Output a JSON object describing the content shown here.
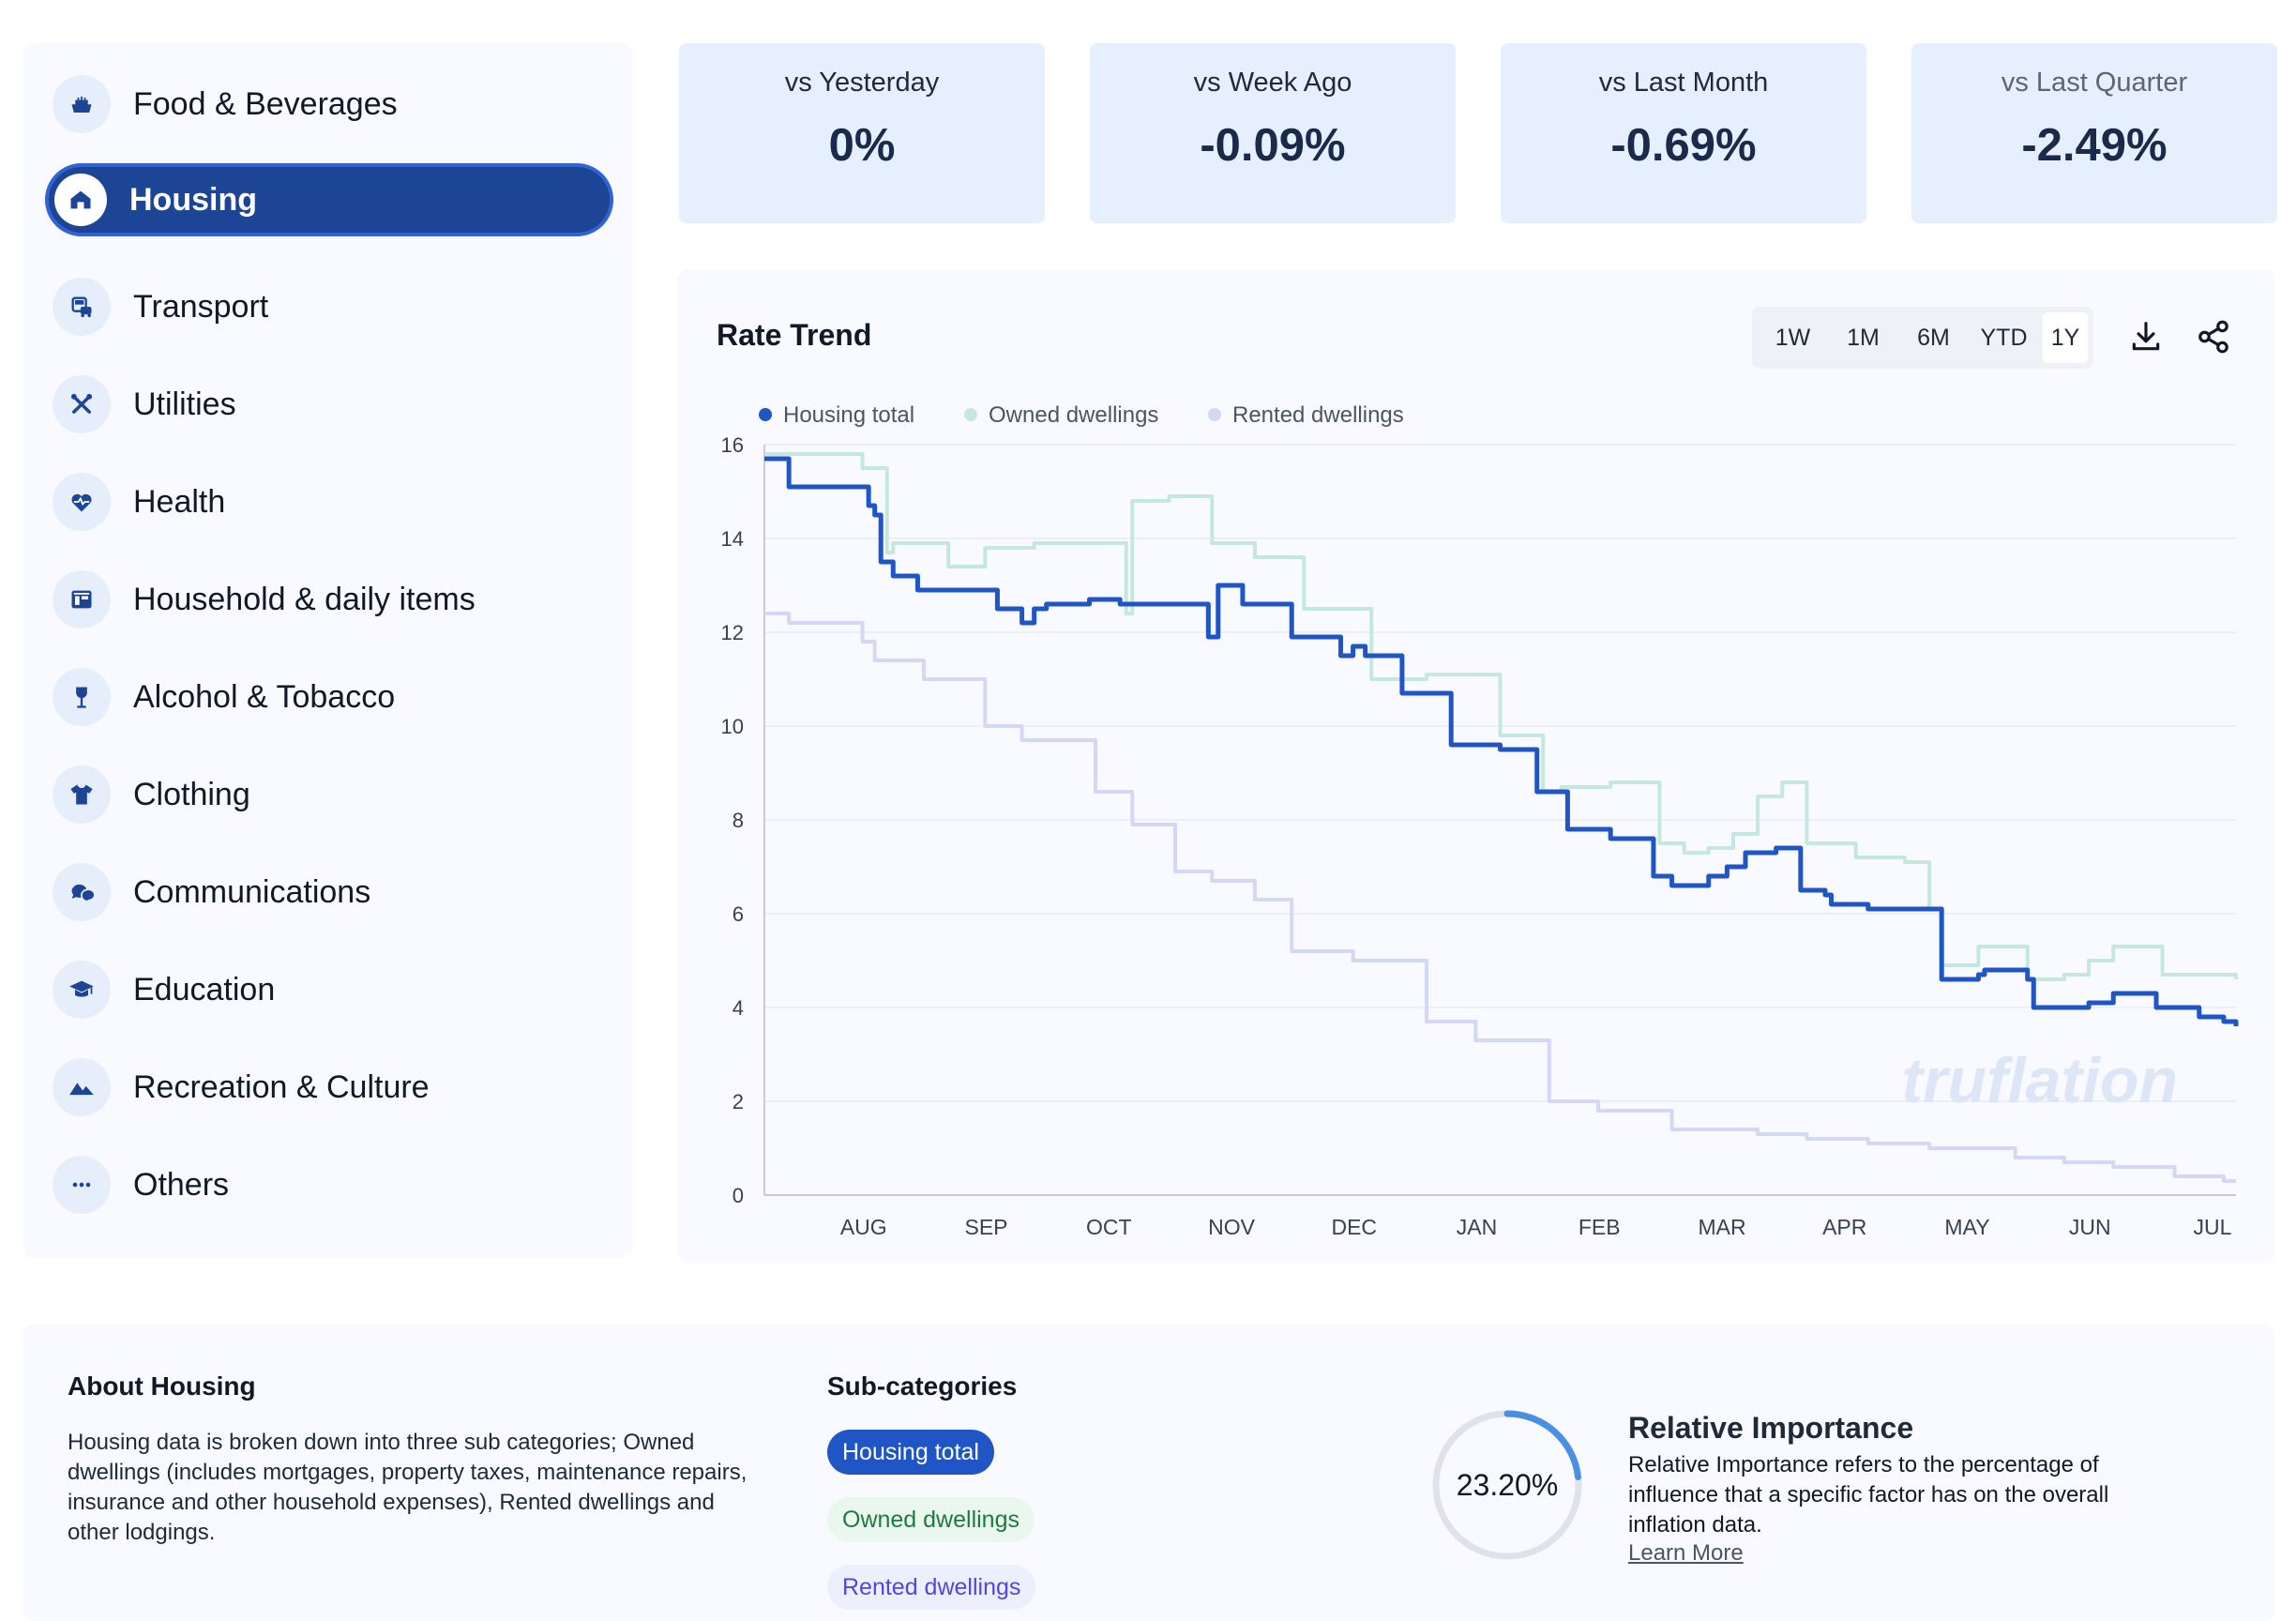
{
  "sidebar": {
    "items": [
      {
        "label": "Food & Beverages",
        "icon": "food-icon"
      },
      {
        "label": "Housing",
        "icon": "home-icon",
        "active": true
      },
      {
        "label": "Transport",
        "icon": "transport-icon"
      },
      {
        "label": "Utilities",
        "icon": "tools-icon"
      },
      {
        "label": "Health",
        "icon": "heart-icon"
      },
      {
        "label": "Household & daily items",
        "icon": "household-icon"
      },
      {
        "label": "Alcohol & Tobacco",
        "icon": "wine-icon"
      },
      {
        "label": "Clothing",
        "icon": "shirt-icon"
      },
      {
        "label": "Communications",
        "icon": "chat-icon"
      },
      {
        "label": "Education",
        "icon": "graduation-cap-icon"
      },
      {
        "label": "Recreation & Culture",
        "icon": "mountain-icon"
      },
      {
        "label": "Others",
        "icon": "dots-icon"
      }
    ]
  },
  "stats": [
    {
      "label": "vs Yesterday",
      "value": "0%"
    },
    {
      "label": "vs Week Ago",
      "value": "-0.09%"
    },
    {
      "label": "vs Last Month",
      "value": "-0.69%"
    },
    {
      "label": "vs Last Quarter",
      "value": "-2.49%"
    }
  ],
  "chart_panel": {
    "title": "Rate Trend",
    "ranges": [
      "1W",
      "1M",
      "6M",
      "YTD",
      "1Y"
    ],
    "selected_range": "1Y",
    "watermark": "truflation"
  },
  "chart_data": {
    "type": "line",
    "title": "Rate Trend",
    "xlabel": "",
    "ylabel": "",
    "x_ticks": [
      "AUG",
      "SEP",
      "OCT",
      "NOV",
      "DEC",
      "JAN",
      "FEB",
      "MAR",
      "APR",
      "MAY",
      "JUN",
      "JUL"
    ],
    "yticks": [
      0,
      2,
      4,
      6,
      8,
      10,
      12,
      14,
      16
    ],
    "ylim": [
      0,
      16
    ],
    "x_domain": [
      0,
      12
    ],
    "grid": true,
    "legend_position": "top-left",
    "series": [
      {
        "name": "Housing total",
        "color": "#1f55c4",
        "x": [
          0,
          0.2,
          0.3,
          0.85,
          0.9,
          0.95,
          1.05,
          1.25,
          1.45,
          1.9,
          2.1,
          2.2,
          2.3,
          2.6,
          2.65,
          2.9,
          3.6,
          3.62,
          3.7,
          3.9,
          4.3,
          4.7,
          4.8,
          4.9,
          5.2,
          5.3,
          5.6,
          6.0,
          6.3,
          6.55,
          6.9,
          7.25,
          7.4,
          7.7,
          7.85,
          8.0,
          8.25,
          8.45,
          8.65,
          8.7,
          9.0,
          9.15,
          9.3,
          9.6,
          9.9,
          9.95,
          10.1,
          10.3,
          10.35,
          10.6,
          10.8,
          11.0,
          11.35,
          11.7,
          11.8,
          11.9,
          12.0
        ],
        "y": [
          15.7,
          15.1,
          15.1,
          14.7,
          14.5,
          13.5,
          13.2,
          12.9,
          12.9,
          12.5,
          12.2,
          12.5,
          12.6,
          12.6,
          12.7,
          12.6,
          12.6,
          11.9,
          13.0,
          12.6,
          11.9,
          11.5,
          11.7,
          11.5,
          10.7,
          10.7,
          9.6,
          9.5,
          8.6,
          7.8,
          7.6,
          6.8,
          6.6,
          6.8,
          7.0,
          7.3,
          7.4,
          6.5,
          6.4,
          6.2,
          6.1,
          6.1,
          6.1,
          4.6,
          4.7,
          4.8,
          4.8,
          4.6,
          4.0,
          4.0,
          4.1,
          4.3,
          4.0,
          3.8,
          3.8,
          3.7,
          3.6
        ]
      },
      {
        "name": "Owned dwellings",
        "color": "#c5e8dc",
        "x": [
          0,
          0.8,
          1.0,
          1.05,
          1.5,
          1.8,
          2.2,
          2.95,
          3.0,
          3.3,
          3.65,
          4.0,
          4.4,
          4.95,
          5.4,
          6.0,
          6.35,
          6.5,
          6.9,
          7.3,
          7.5,
          7.7,
          7.9,
          8.1,
          8.3,
          8.5,
          8.9,
          9.3,
          9.5,
          9.6,
          9.9,
          10.1,
          10.3,
          10.6,
          10.8,
          11.0,
          11.4,
          12.0
        ],
        "y": [
          15.8,
          15.5,
          13.7,
          13.9,
          13.4,
          13.8,
          13.9,
          12.4,
          14.8,
          14.9,
          13.9,
          13.6,
          12.5,
          11.0,
          11.1,
          9.8,
          8.6,
          8.7,
          8.8,
          7.5,
          7.3,
          7.4,
          7.7,
          8.5,
          8.8,
          7.5,
          7.2,
          7.1,
          6.1,
          4.9,
          5.3,
          5.3,
          4.6,
          4.7,
          5.0,
          5.3,
          4.7,
          4.6
        ]
      },
      {
        "name": "Rented dwellings",
        "color": "#d3d8f5",
        "x": [
          0,
          0.2,
          0.8,
          0.9,
          1.3,
          1.8,
          2.1,
          2.7,
          3.0,
          3.35,
          3.65,
          4.0,
          4.3,
          4.8,
          5.4,
          5.8,
          6.4,
          6.8,
          7.4,
          8.1,
          8.5,
          9.0,
          9.5,
          10.2,
          10.6,
          11.0,
          11.5,
          11.9,
          12.0
        ],
        "y": [
          12.4,
          12.2,
          11.8,
          11.4,
          11.0,
          10.0,
          9.7,
          8.6,
          7.9,
          6.9,
          6.7,
          6.3,
          5.2,
          5.0,
          3.7,
          3.3,
          2.0,
          1.8,
          1.4,
          1.3,
          1.2,
          1.1,
          1.0,
          0.8,
          0.7,
          0.6,
          0.4,
          0.3,
          0.3
        ]
      }
    ]
  },
  "about": {
    "title": "About Housing",
    "text": "Housing data is broken down into three sub categories; Owned dwellings (includes mortgages, property taxes, maintenance repairs, insurance and other household expenses), Rented dwellings and other lodgings.",
    "subcategories_title": "Sub-categories",
    "subcategories": [
      "Housing total",
      "Owned dwellings",
      "Rented dwellings"
    ],
    "relative_importance": {
      "value": "23.20%",
      "fraction": 0.232,
      "title": "Relative Importance",
      "text": "Relative Importance refers to the percentage of influence that a specific factor has on the overall inflation data.",
      "link": "Learn More"
    }
  },
  "colors": {
    "primary": "#1f55c4",
    "active_nav": "#1d4596",
    "card_bg": "#e6effd",
    "panel_bg": "#f8faff"
  }
}
